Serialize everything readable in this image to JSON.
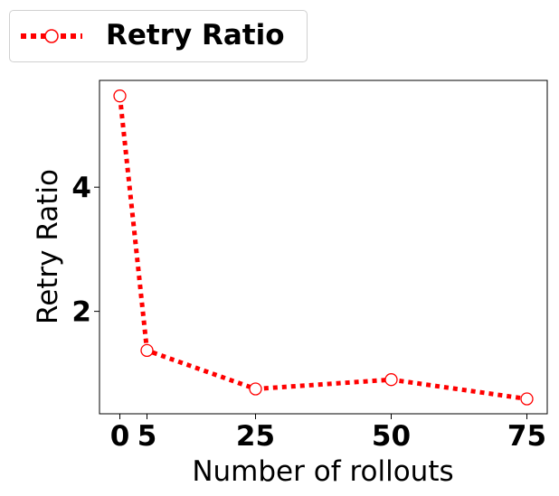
{
  "chart_data": {
    "type": "line",
    "title": "",
    "xlabel": "Number of rollouts",
    "ylabel": "Retry Ratio",
    "x": [
      0,
      5,
      25,
      50,
      75
    ],
    "series": [
      {
        "name": "Retry Ratio",
        "values": [
          5.47,
          1.37,
          0.75,
          0.9,
          0.59
        ]
      }
    ],
    "xticks": [
      0,
      5,
      25,
      50,
      75
    ],
    "xtick_labels": [
      "0",
      "5",
      "25",
      "50",
      "75"
    ],
    "yticks": [
      2,
      4
    ],
    "ytick_labels": [
      "2",
      "4"
    ],
    "xlim": [
      -3.75,
      78.75
    ],
    "ylim": [
      0.35,
      5.72
    ],
    "grid": false,
    "legend_position": "top-left, outside above plot",
    "line_style": "dotted",
    "marker": "open circle",
    "line_color": "#ff0000",
    "marker_face_color": "#ffffff"
  }
}
